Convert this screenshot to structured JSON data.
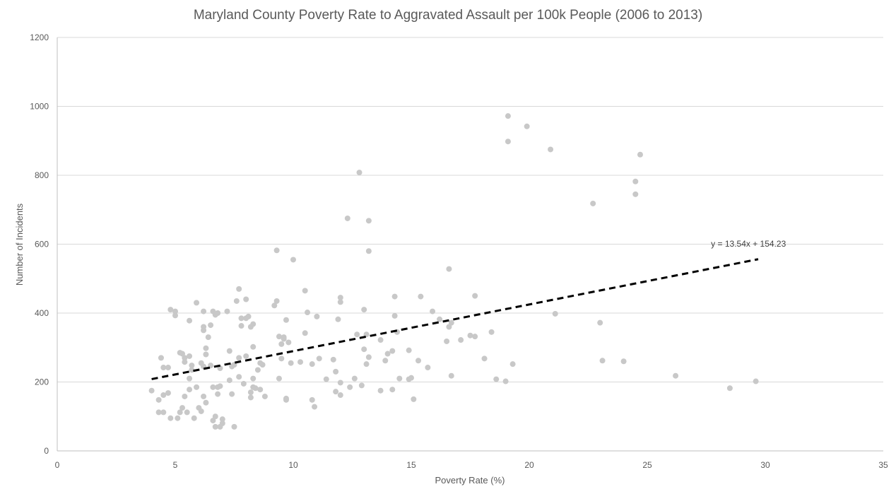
{
  "chart_data": {
    "type": "scatter",
    "title": "Maryland County Poverty Rate to Aggravated Assault per 100k People (2006 to 2013)",
    "xlabel": "Poverty Rate (%)",
    "ylabel": "Number of Incidents",
    "xlim": [
      0,
      35
    ],
    "ylim": [
      0,
      1200
    ],
    "xticks": [
      0,
      5,
      10,
      15,
      20,
      25,
      30,
      35
    ],
    "yticks": [
      0,
      200,
      400,
      600,
      800,
      1000,
      1200
    ],
    "grid": "horizontal",
    "colors": {
      "points": "#c8c8c8",
      "trendline": "#000000",
      "gridlines": "#d9d9d9",
      "text": "#595959"
    },
    "trendline": {
      "type": "linear",
      "slope": 13.54,
      "intercept": 154.23,
      "x_range": [
        4.0,
        29.7
      ],
      "equation_label": "y = 13.54x + 154.23"
    },
    "points": [
      [
        4.0,
        175
      ],
      [
        4.3,
        148
      ],
      [
        4.3,
        112
      ],
      [
        4.4,
        270
      ],
      [
        4.5,
        242
      ],
      [
        4.5,
        112
      ],
      [
        4.5,
        162
      ],
      [
        4.7,
        168
      ],
      [
        4.7,
        242
      ],
      [
        4.8,
        95
      ],
      [
        4.8,
        410
      ],
      [
        5.0,
        405
      ],
      [
        5.0,
        393
      ],
      [
        5.1,
        95
      ],
      [
        5.2,
        285
      ],
      [
        5.2,
        112
      ],
      [
        5.3,
        282
      ],
      [
        5.3,
        125
      ],
      [
        5.4,
        270
      ],
      [
        5.4,
        258
      ],
      [
        5.4,
        158
      ],
      [
        5.5,
        112
      ],
      [
        5.6,
        275
      ],
      [
        5.6,
        210
      ],
      [
        5.6,
        178
      ],
      [
        5.6,
        378
      ],
      [
        5.7,
        248
      ],
      [
        5.7,
        235
      ],
      [
        5.8,
        95
      ],
      [
        5.9,
        430
      ],
      [
        5.9,
        185
      ],
      [
        6.0,
        125
      ],
      [
        6.1,
        255
      ],
      [
        6.1,
        115
      ],
      [
        6.2,
        405
      ],
      [
        6.2,
        360
      ],
      [
        6.2,
        350
      ],
      [
        6.2,
        158
      ],
      [
        6.2,
        245
      ],
      [
        6.3,
        298
      ],
      [
        6.3,
        280
      ],
      [
        6.3,
        140
      ],
      [
        6.4,
        330
      ],
      [
        6.5,
        365
      ],
      [
        6.5,
        248
      ],
      [
        6.6,
        405
      ],
      [
        6.6,
        185
      ],
      [
        6.6,
        88
      ],
      [
        6.7,
        395
      ],
      [
        6.7,
        100
      ],
      [
        6.7,
        70
      ],
      [
        6.8,
        400
      ],
      [
        6.8,
        185
      ],
      [
        6.8,
        165
      ],
      [
        6.9,
        70
      ],
      [
        6.9,
        188
      ],
      [
        6.9,
        240
      ],
      [
        7.0,
        92
      ],
      [
        7.0,
        80
      ],
      [
        7.2,
        405
      ],
      [
        7.3,
        290
      ],
      [
        7.3,
        205
      ],
      [
        7.4,
        165
      ],
      [
        7.4,
        245
      ],
      [
        7.5,
        250
      ],
      [
        7.5,
        70
      ],
      [
        7.6,
        435
      ],
      [
        7.7,
        470
      ],
      [
        7.7,
        270
      ],
      [
        7.7,
        215
      ],
      [
        7.8,
        385
      ],
      [
        7.8,
        363
      ],
      [
        7.9,
        195
      ],
      [
        8.0,
        440
      ],
      [
        8.0,
        385
      ],
      [
        8.0,
        275
      ],
      [
        8.1,
        390
      ],
      [
        8.2,
        155
      ],
      [
        8.2,
        170
      ],
      [
        8.2,
        360
      ],
      [
        8.3,
        368
      ],
      [
        8.3,
        302
      ],
      [
        8.3,
        210
      ],
      [
        8.3,
        185
      ],
      [
        8.4,
        182
      ],
      [
        8.5,
        235
      ],
      [
        8.6,
        178
      ],
      [
        8.6,
        255
      ],
      [
        8.7,
        250
      ],
      [
        8.8,
        158
      ],
      [
        9.2,
        422
      ],
      [
        9.3,
        435
      ],
      [
        9.3,
        582
      ],
      [
        9.4,
        332
      ],
      [
        9.4,
        210
      ],
      [
        9.5,
        310
      ],
      [
        9.5,
        268
      ],
      [
        9.6,
        330
      ],
      [
        9.6,
        325
      ],
      [
        9.7,
        380
      ],
      [
        9.7,
        152
      ],
      [
        9.7,
        148
      ],
      [
        9.8,
        315
      ],
      [
        9.9,
        255
      ],
      [
        10.0,
        555
      ],
      [
        10.3,
        258
      ],
      [
        10.5,
        465
      ],
      [
        10.5,
        342
      ],
      [
        10.6,
        402
      ],
      [
        10.8,
        148
      ],
      [
        10.8,
        252
      ],
      [
        10.9,
        128
      ],
      [
        11.0,
        390
      ],
      [
        11.1,
        268
      ],
      [
        11.4,
        208
      ],
      [
        11.7,
        265
      ],
      [
        11.8,
        172
      ],
      [
        11.8,
        230
      ],
      [
        11.9,
        382
      ],
      [
        12.0,
        445
      ],
      [
        12.0,
        432
      ],
      [
        12.0,
        198
      ],
      [
        12.0,
        162
      ],
      [
        12.3,
        675
      ],
      [
        12.4,
        185
      ],
      [
        12.6,
        210
      ],
      [
        12.7,
        338
      ],
      [
        12.8,
        808
      ],
      [
        12.9,
        190
      ],
      [
        13.0,
        410
      ],
      [
        13.0,
        295
      ],
      [
        13.1,
        338
      ],
      [
        13.1,
        252
      ],
      [
        13.2,
        668
      ],
      [
        13.2,
        580
      ],
      [
        13.2,
        272
      ],
      [
        13.7,
        322
      ],
      [
        13.7,
        175
      ],
      [
        13.9,
        262
      ],
      [
        14.0,
        282
      ],
      [
        14.2,
        290
      ],
      [
        14.2,
        178
      ],
      [
        14.3,
        448
      ],
      [
        14.3,
        392
      ],
      [
        14.4,
        345
      ],
      [
        14.5,
        210
      ],
      [
        14.9,
        292
      ],
      [
        14.9,
        208
      ],
      [
        15.0,
        212
      ],
      [
        15.1,
        150
      ],
      [
        15.3,
        262
      ],
      [
        15.4,
        448
      ],
      [
        15.7,
        242
      ],
      [
        15.9,
        405
      ],
      [
        16.2,
        382
      ],
      [
        16.5,
        318
      ],
      [
        16.6,
        528
      ],
      [
        16.6,
        360
      ],
      [
        16.7,
        372
      ],
      [
        16.7,
        218
      ],
      [
        17.1,
        322
      ],
      [
        17.5,
        335
      ],
      [
        17.7,
        450
      ],
      [
        17.7,
        332
      ],
      [
        18.1,
        268
      ],
      [
        18.4,
        345
      ],
      [
        18.6,
        208
      ],
      [
        19.0,
        202
      ],
      [
        19.1,
        972
      ],
      [
        19.1,
        898
      ],
      [
        19.3,
        252
      ],
      [
        19.9,
        942
      ],
      [
        20.9,
        875
      ],
      [
        21.1,
        398
      ],
      [
        22.7,
        718
      ],
      [
        23.0,
        372
      ],
      [
        23.1,
        262
      ],
      [
        24.0,
        260
      ],
      [
        24.5,
        782
      ],
      [
        24.5,
        745
      ],
      [
        24.7,
        860
      ],
      [
        26.2,
        218
      ],
      [
        28.5,
        182
      ],
      [
        29.6,
        202
      ]
    ]
  }
}
